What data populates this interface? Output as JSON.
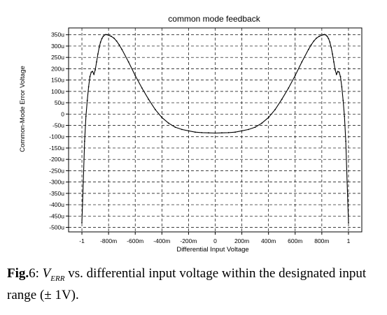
{
  "chart_data": {
    "type": "line",
    "title": "common mode feedback",
    "xlabel": "Differential Input Voltage",
    "ylabel": "Common-Mode Error Voltage",
    "xlim": [
      -1.1,
      1.1
    ],
    "ylim": [
      -520,
      380
    ],
    "grid": "on",
    "x_ticks": [
      {
        "v": -1.0,
        "label": "-1"
      },
      {
        "v": -0.8,
        "label": "-800m"
      },
      {
        "v": -0.6,
        "label": "-600m"
      },
      {
        "v": -0.4,
        "label": "-400m"
      },
      {
        "v": -0.2,
        "label": "-200m"
      },
      {
        "v": 0.0,
        "label": "0"
      },
      {
        "v": 0.2,
        "label": "200m"
      },
      {
        "v": 0.4,
        "label": "400m"
      },
      {
        "v": 0.6,
        "label": "600m"
      },
      {
        "v": 0.8,
        "label": "800m"
      },
      {
        "v": 1.0,
        "label": "1"
      }
    ],
    "y_ticks": [
      {
        "v": 350,
        "label": "350u"
      },
      {
        "v": 300,
        "label": "300u"
      },
      {
        "v": 250,
        "label": "250u"
      },
      {
        "v": 200,
        "label": "200u"
      },
      {
        "v": 150,
        "label": "150u"
      },
      {
        "v": 100,
        "label": "100u"
      },
      {
        "v": 50,
        "label": "50u"
      },
      {
        "v": 0,
        "label": "0"
      },
      {
        "v": -50,
        "label": "-50u"
      },
      {
        "v": -100,
        "label": "-100u"
      },
      {
        "v": -150,
        "label": "-150u"
      },
      {
        "v": -200,
        "label": "-200u"
      },
      {
        "v": -250,
        "label": "-250u"
      },
      {
        "v": -300,
        "label": "-300u"
      },
      {
        "v": -350,
        "label": "-350u"
      },
      {
        "v": -400,
        "label": "-400u"
      },
      {
        "v": -450,
        "label": "-450u"
      },
      {
        "v": -500,
        "label": "-500u"
      }
    ],
    "series": [
      {
        "color": "#000000",
        "x": [
          -1.0,
          -0.99,
          -0.98,
          -0.97,
          -0.96,
          -0.95,
          -0.94,
          -0.93,
          -0.92,
          -0.91,
          -0.9,
          -0.89,
          -0.88,
          -0.87,
          -0.86,
          -0.85,
          -0.84,
          -0.83,
          -0.82,
          -0.81,
          -0.8,
          -0.78,
          -0.76,
          -0.74,
          -0.72,
          -0.7,
          -0.65,
          -0.6,
          -0.55,
          -0.5,
          -0.45,
          -0.4,
          -0.35,
          -0.3,
          -0.25,
          -0.2,
          -0.15,
          -0.1,
          -0.05,
          0.0,
          0.05,
          0.1,
          0.15,
          0.2,
          0.25,
          0.3,
          0.35,
          0.4,
          0.45,
          0.5,
          0.55,
          0.6,
          0.65,
          0.7,
          0.72,
          0.74,
          0.76,
          0.78,
          0.8,
          0.81,
          0.82,
          0.83,
          0.84,
          0.85,
          0.86,
          0.87,
          0.88,
          0.89,
          0.9,
          0.91,
          0.92,
          0.93,
          0.94,
          0.95,
          0.96,
          0.97,
          0.98,
          0.99,
          1.0
        ],
        "y": [
          -480,
          -300,
          -120,
          -10,
          60,
          120,
          165,
          185,
          188,
          175,
          195,
          230,
          265,
          295,
          318,
          333,
          343,
          349,
          351,
          350,
          348,
          343,
          335,
          322,
          305,
          285,
          230,
          170,
          115,
          65,
          20,
          -15,
          -40,
          -58,
          -68,
          -74,
          -80,
          -82,
          -83,
          -84,
          -83,
          -82,
          -80,
          -74,
          -68,
          -58,
          -40,
          -15,
          20,
          65,
          115,
          170,
          230,
          285,
          305,
          322,
          335,
          343,
          348,
          350,
          351,
          349,
          343,
          333,
          318,
          295,
          265,
          230,
          195,
          175,
          188,
          185,
          165,
          120,
          60,
          -10,
          -120,
          -300,
          -480
        ]
      }
    ]
  },
  "caption": {
    "label": "Fig.",
    "number": "6",
    "var_main": "V",
    "var_sub": "ERR",
    "text": " vs. differential input voltage within the designated input range (± 1V)."
  }
}
